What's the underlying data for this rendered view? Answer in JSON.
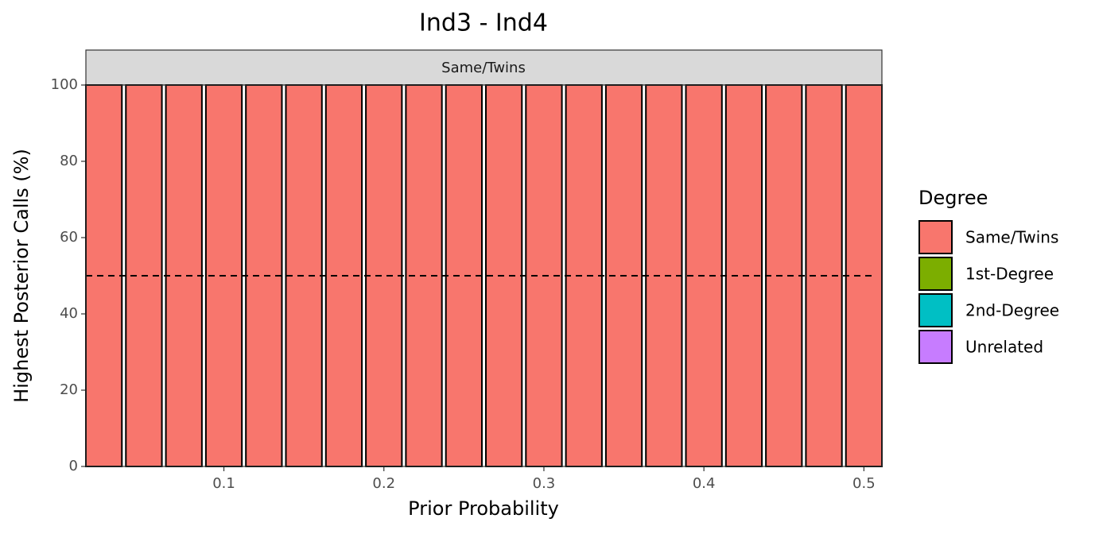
{
  "chart_data": {
    "type": "bar",
    "stacked": true,
    "title": "Ind3 - Ind4",
    "strip": "Same/Twins",
    "x_label": "Prior Probability",
    "y_label": "Highest Posterior Calls (%)",
    "legend_title": "Degree",
    "x": [
      0.025,
      0.05,
      0.075,
      0.1,
      0.125,
      0.15,
      0.175,
      0.2,
      0.225,
      0.25,
      0.275,
      0.3,
      0.325,
      0.35,
      0.375,
      0.4,
      0.425,
      0.45,
      0.475,
      0.5
    ],
    "series": [
      {
        "name": "Same/Twins",
        "color": "#F8766D",
        "values": [
          100,
          100,
          100,
          100,
          100,
          100,
          100,
          100,
          100,
          100,
          100,
          100,
          100,
          100,
          100,
          100,
          100,
          100,
          100,
          100
        ]
      },
      {
        "name": "1st-Degree",
        "color": "#7CAE00",
        "values": [
          0,
          0,
          0,
          0,
          0,
          0,
          0,
          0,
          0,
          0,
          0,
          0,
          0,
          0,
          0,
          0,
          0,
          0,
          0,
          0
        ]
      },
      {
        "name": "2nd-Degree",
        "color": "#00BFC4",
        "values": [
          0,
          0,
          0,
          0,
          0,
          0,
          0,
          0,
          0,
          0,
          0,
          0,
          0,
          0,
          0,
          0,
          0,
          0,
          0,
          0
        ]
      },
      {
        "name": "Unrelated",
        "color": "#C77CFF",
        "values": [
          0,
          0,
          0,
          0,
          0,
          0,
          0,
          0,
          0,
          0,
          0,
          0,
          0,
          0,
          0,
          0,
          0,
          0,
          0,
          0
        ]
      }
    ],
    "hline": 50,
    "xlim": [
      0.01375,
      0.51125
    ],
    "xticks": [
      0.1,
      0.2,
      0.3,
      0.4,
      0.5
    ],
    "ylim": [
      0,
      100
    ],
    "yticks": [
      0,
      20,
      40,
      60,
      80,
      100
    ],
    "legend_position": "right"
  }
}
